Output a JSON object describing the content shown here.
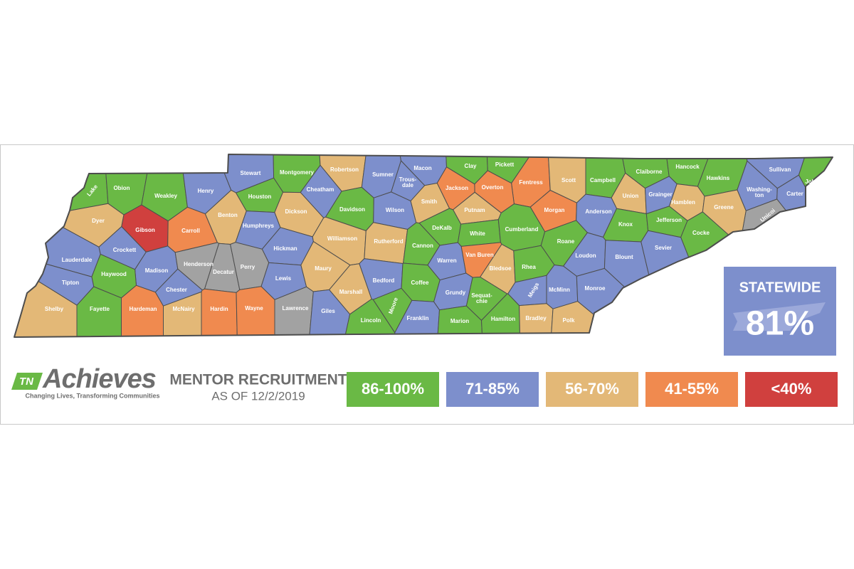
{
  "logo": {
    "badge": "TN",
    "name": "Achieves",
    "tagline": "Changing Lives, Transforming Communities"
  },
  "heading": {
    "title": "MENTOR RECRUITMENT",
    "date": "AS OF 12/2/2019"
  },
  "statewide": {
    "label": "STATEWIDE",
    "value": "81%"
  },
  "legend": [
    {
      "label": "86-100%",
      "color": "#6ab945"
    },
    {
      "label": "71-85%",
      "color": "#7d8fcc"
    },
    {
      "label": "56-70%",
      "color": "#e3b877"
    },
    {
      "label": "41-55%",
      "color": "#f08a4f"
    },
    {
      "label": "<40%",
      "color": "#d0403e"
    }
  ],
  "map": {
    "counties": [
      {
        "name": "Lake",
        "color": "#6ab945"
      },
      {
        "name": "Obion",
        "color": "#6ab945"
      },
      {
        "name": "Weakley",
        "color": "#6ab945"
      },
      {
        "name": "Henry",
        "color": "#7d8fcc"
      },
      {
        "name": "Stewart",
        "color": "#7d8fcc"
      },
      {
        "name": "Montgomery",
        "color": "#6ab945"
      },
      {
        "name": "Robertson",
        "color": "#e3b877"
      },
      {
        "name": "Sumner",
        "color": "#7d8fcc"
      },
      {
        "name": "Macon",
        "color": "#7d8fcc"
      },
      {
        "name": "Clay",
        "color": "#6ab945"
      },
      {
        "name": "Pickett",
        "color": "#6ab945"
      },
      {
        "name": "Fentress",
        "color": "#f08a4f"
      },
      {
        "name": "Scott",
        "color": "#e3b877"
      },
      {
        "name": "Campbell",
        "color": "#6ab945"
      },
      {
        "name": "Claiborne",
        "color": "#6ab945"
      },
      {
        "name": "Hancock",
        "color": "#6ab945"
      },
      {
        "name": "Hawkins",
        "color": "#6ab945"
      },
      {
        "name": "Sullivan",
        "color": "#7d8fcc"
      },
      {
        "name": "Johnson",
        "color": "#6ab945"
      },
      {
        "name": "Dyer",
        "color": "#e3b877"
      },
      {
        "name": "Gibson",
        "color": "#d0403e"
      },
      {
        "name": "Carroll",
        "color": "#f08a4f"
      },
      {
        "name": "Benton",
        "color": "#e3b877"
      },
      {
        "name": "Houston",
        "color": "#6ab945"
      },
      {
        "name": "Cheatham",
        "color": "#7d8fcc"
      },
      {
        "name": [
          "Trous-",
          "dale"
        ],
        "color": "#7d8fcc"
      },
      {
        "name": "Jackson",
        "color": "#f08a4f"
      },
      {
        "name": "Overton",
        "color": "#f08a4f"
      },
      {
        "name": "Morgan",
        "color": "#f08a4f"
      },
      {
        "name": "Union",
        "color": "#e3b877"
      },
      {
        "name": "Grainger",
        "color": "#7d8fcc"
      },
      {
        "name": "Hamblen",
        "color": "#e3b877"
      },
      {
        "name": [
          "Washing-",
          "ton"
        ],
        "color": "#7d8fcc"
      },
      {
        "name": "Carter",
        "color": "#7d8fcc"
      },
      {
        "name": "Unicoi",
        "color": "#a2a2a2"
      },
      {
        "name": "Greene",
        "color": "#e3b877"
      },
      {
        "name": "Humphreys",
        "color": "#7d8fcc"
      },
      {
        "name": "Dickson",
        "color": "#e3b877"
      },
      {
        "name": "Davidson",
        "color": "#6ab945"
      },
      {
        "name": "Wilson",
        "color": "#7d8fcc"
      },
      {
        "name": "Smith",
        "color": "#e3b877"
      },
      {
        "name": "Putnam",
        "color": "#e3b877"
      },
      {
        "name": "Anderson",
        "color": "#7d8fcc"
      },
      {
        "name": "Knox",
        "color": "#6ab945"
      },
      {
        "name": "Jefferson",
        "color": "#6ab945"
      },
      {
        "name": "Cocke",
        "color": "#6ab945"
      },
      {
        "name": "Lauderdale",
        "color": "#7d8fcc"
      },
      {
        "name": "Crockett",
        "color": "#7d8fcc"
      },
      {
        "name": "Madison",
        "color": "#7d8fcc"
      },
      {
        "name": "Haywood",
        "color": "#6ab945"
      },
      {
        "name": "Tipton",
        "color": "#7d8fcc"
      },
      {
        "name": "Hickman",
        "color": "#7d8fcc"
      },
      {
        "name": "Williamson",
        "color": "#e3b877"
      },
      {
        "name": "Rutherford",
        "color": "#e3b877"
      },
      {
        "name": "DeKalb",
        "color": "#6ab945"
      },
      {
        "name": "White",
        "color": "#6ab945"
      },
      {
        "name": "Cumberland",
        "color": "#6ab945"
      },
      {
        "name": "Roane",
        "color": "#6ab945"
      },
      {
        "name": "Loudon",
        "color": "#7d8fcc"
      },
      {
        "name": "Blount",
        "color": "#7d8fcc"
      },
      {
        "name": "Sevier",
        "color": "#7d8fcc"
      },
      {
        "name": "Cannon",
        "color": "#6ab945"
      },
      {
        "name": "Van Buren",
        "color": "#f08a4f"
      },
      {
        "name": "Warren",
        "color": "#7d8fcc"
      },
      {
        "name": "Henderson",
        "color": "#a2a2a2"
      },
      {
        "name": "Decatur",
        "color": "#a2a2a2"
      },
      {
        "name": "Perry",
        "color": "#a2a2a2"
      },
      {
        "name": "Lewis",
        "color": "#7d8fcc"
      },
      {
        "name": "Maury",
        "color": "#e3b877"
      },
      {
        "name": "Bedford",
        "color": "#7d8fcc"
      },
      {
        "name": "Coffee",
        "color": "#6ab945"
      },
      {
        "name": "Bledsoe",
        "color": "#e3b877"
      },
      {
        "name": "Rhea",
        "color": "#6ab945"
      },
      {
        "name": "Meigs",
        "color": "#7d8fcc"
      },
      {
        "name": "McMinn",
        "color": "#7d8fcc"
      },
      {
        "name": "Monroe",
        "color": "#7d8fcc"
      },
      {
        "name": "Chester",
        "color": "#7d8fcc"
      },
      {
        "name": "Marshall",
        "color": "#e3b877"
      },
      {
        "name": "Grundy",
        "color": "#7d8fcc"
      },
      {
        "name": [
          "Sequat-",
          "chie"
        ],
        "color": "#6ab945"
      },
      {
        "name": "Shelby",
        "color": "#e3b877"
      },
      {
        "name": "Fayette",
        "color": "#6ab945"
      },
      {
        "name": "Hardeman",
        "color": "#f08a4f"
      },
      {
        "name": "McNairy",
        "color": "#e3b877"
      },
      {
        "name": "Hardin",
        "color": "#f08a4f"
      },
      {
        "name": "Wayne",
        "color": "#f08a4f"
      },
      {
        "name": "Lawrence",
        "color": "#a2a2a2"
      },
      {
        "name": "Giles",
        "color": "#7d8fcc"
      },
      {
        "name": "Lincoln",
        "color": "#6ab945"
      },
      {
        "name": "Moore",
        "color": "#6ab945"
      },
      {
        "name": "Franklin",
        "color": "#7d8fcc"
      },
      {
        "name": "Marion",
        "color": "#6ab945"
      },
      {
        "name": "Hamilton",
        "color": "#6ab945"
      },
      {
        "name": "Bradley",
        "color": "#e3b877"
      },
      {
        "name": "Polk",
        "color": "#e3b877"
      }
    ]
  }
}
